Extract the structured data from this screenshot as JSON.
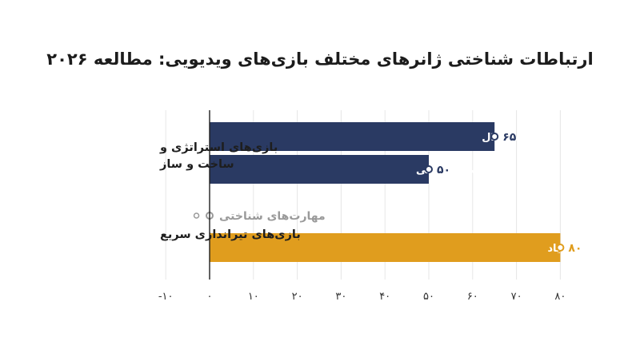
{
  "chart_data": {
    "type": "bar",
    "orientation": "horizontal",
    "title": "ارتباطات شناختی ژانرهای مختلف بازی‌های ویدیویی: مطالعه ۲۰۲۶",
    "xlabel": "",
    "ylabel": "",
    "xlim": [
      -10,
      80
    ],
    "x_ticks": [
      -10,
      0,
      10,
      20,
      30,
      40,
      50,
      60,
      70,
      80
    ],
    "x_tick_labels": [
      "-۱۰",
      "۰",
      "۱۰",
      "۲۰",
      "۳۰",
      "۴۰",
      "۵۰",
      "۶۰",
      "۷۰",
      "۸۰"
    ],
    "grid": "vertical",
    "categories": [
      {
        "label_lines": [
          "بازی‌های استراتژی و",
          "ساخت و ساز"
        ],
        "bars": [
          {
            "label": "استدلال",
            "value": 65,
            "value_label": "۶۵",
            "color": "#2a3a63"
          },
          {
            "label": "مهارت‌های کلامی",
            "value": 50,
            "value_label": "۵۰",
            "color": "#2a3a63"
          }
        ]
      },
      {
        "label_lines": [
          "بازی‌های تیراندازی سریع"
        ],
        "bars": [
          {
            "label": "مهارت‌های شناختی",
            "value": 0,
            "value_label": "۰",
            "color": "#9a9a9a"
          },
          {
            "label": "ارتباط با علائم اعتیاد",
            "value": 80,
            "value_label": "۸۰",
            "color": "#e09d1e"
          }
        ]
      }
    ]
  }
}
